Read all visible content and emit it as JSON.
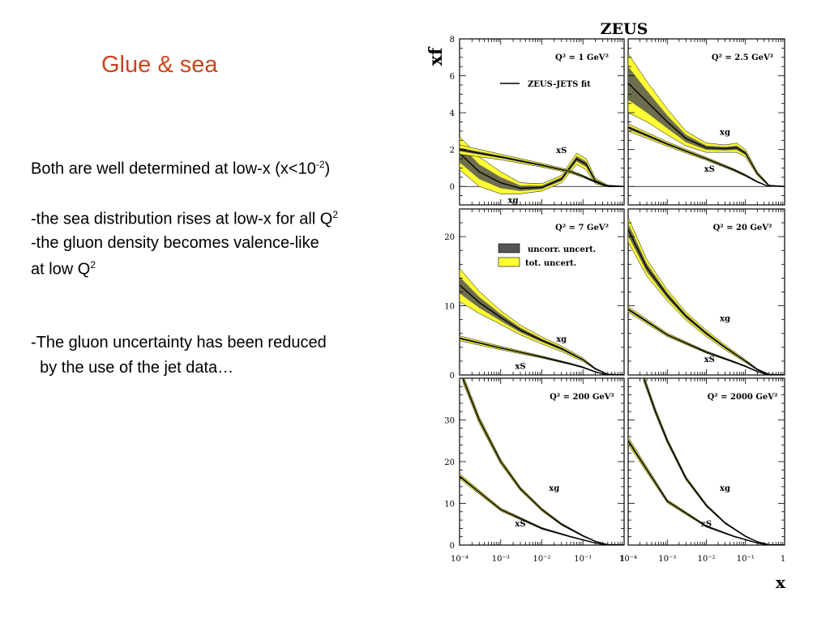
{
  "slide": {
    "title": "Glue & sea",
    "bullets": [
      {
        "text": "Both are well determined at low-x (x<10",
        "sup": "-2",
        "after": ")"
      },
      {
        "text": "-the sea distribution rises at low-x for all Q",
        "sup": "2",
        "after": ""
      },
      {
        "text": "-the gluon density becomes valence-like",
        "sup": "",
        "after": ""
      },
      {
        "text": " at low Q",
        "sup": "2",
        "after": ""
      },
      {
        "text": "-The gluon uncertainty has been reduced",
        "sup": "",
        "after": ""
      },
      {
        "text": "  by the use of the jet data…",
        "sup": "",
        "after": ""
      }
    ]
  },
  "chart_data": {
    "type": "line",
    "title": "ZEUS",
    "ylabel": "xf",
    "xlabel": "x",
    "xscale": "log",
    "xlim": [
      0.0001,
      1
    ],
    "xticks": [
      "10⁻⁴",
      "10⁻³",
      "10⁻²",
      "10⁻¹",
      "1"
    ],
    "legend_fit": "ZEUS-JETS fit",
    "legend_bands": [
      "uncorr. uncert.",
      "tot. uncert."
    ],
    "colors": {
      "tot_uncert": "#ffff33",
      "uncorr_uncert": "#555555",
      "line": "#000000"
    },
    "rows": [
      {
        "ylim": [
          -1,
          8
        ],
        "yticks": [
          0,
          2,
          4,
          6,
          8
        ]
      },
      {
        "ylim": [
          0,
          24
        ],
        "yticks": [
          0,
          10,
          20
        ]
      },
      {
        "ylim": [
          0,
          40
        ],
        "yticks": [
          0,
          10,
          20,
          30
        ]
      }
    ],
    "panels": [
      {
        "label": "Q² = 1 GeV²",
        "xg": {
          "x": [
            0.0001,
            0.0003,
            0.001,
            0.003,
            0.01,
            0.03,
            0.07,
            0.12,
            0.2,
            0.4,
            1
          ],
          "y": [
            1.8,
            0.8,
            0.2,
            -0.1,
            -0.05,
            0.4,
            1.5,
            1.2,
            0.3,
            0.02,
            0
          ],
          "tot": [
            0.9,
            0.8,
            0.6,
            0.3,
            0.2,
            0.2,
            0.3,
            0.3,
            0.15,
            0.05,
            0
          ],
          "unc": [
            0.5,
            0.4,
            0.3,
            0.15,
            0.1,
            0.1,
            0.15,
            0.15,
            0.08,
            0.03,
            0
          ]
        },
        "xS": {
          "x": [
            0.0001,
            0.001,
            0.01,
            0.05,
            0.1,
            0.2,
            0.35,
            1
          ],
          "y": [
            2.0,
            1.6,
            1.15,
            0.8,
            0.55,
            0.25,
            0.05,
            0
          ],
          "tot": [
            0.25,
            0.15,
            0.1,
            0.08,
            0.06,
            0.04,
            0.02,
            0
          ],
          "unc": [
            0.1,
            0.07,
            0.05,
            0.04,
            0.03,
            0.02,
            0.01,
            0
          ]
        }
      },
      {
        "label": "Q² = 2.5 GeV²",
        "xg": {
          "x": [
            0.0001,
            0.0003,
            0.001,
            0.003,
            0.01,
            0.03,
            0.06,
            0.1,
            0.2,
            0.4,
            1
          ],
          "y": [
            5.6,
            4.6,
            3.5,
            2.6,
            2.1,
            2.05,
            2.1,
            1.8,
            0.7,
            0.05,
            0
          ],
          "tot": [
            1.6,
            1.1,
            0.7,
            0.4,
            0.25,
            0.2,
            0.25,
            0.2,
            0.1,
            0.03,
            0
          ],
          "unc": [
            0.9,
            0.6,
            0.35,
            0.2,
            0.12,
            0.1,
            0.12,
            0.1,
            0.05,
            0.02,
            0
          ]
        },
        "xS": {
          "x": [
            0.0001,
            0.001,
            0.01,
            0.05,
            0.1,
            0.2,
            0.35,
            1
          ],
          "y": [
            3.2,
            2.3,
            1.5,
            0.9,
            0.6,
            0.25,
            0.04,
            0
          ],
          "tot": [
            0.2,
            0.12,
            0.08,
            0.06,
            0.05,
            0.03,
            0.01,
            0
          ],
          "unc": [
            0.1,
            0.06,
            0.04,
            0.03,
            0.02,
            0.01,
            0.005,
            0
          ]
        }
      },
      {
        "label": "Q² = 7 GeV²",
        "xg": {
          "x": [
            0.0001,
            0.0003,
            0.001,
            0.003,
            0.01,
            0.03,
            0.1,
            0.2,
            0.4,
            1
          ],
          "y": [
            13,
            10.5,
            8.3,
            6.5,
            5,
            3.8,
            2.2,
            0.9,
            0.1,
            0
          ],
          "tot": [
            2.4,
            1.6,
            1,
            0.7,
            0.5,
            0.4,
            0.25,
            0.1,
            0.02,
            0
          ],
          "unc": [
            1.2,
            0.8,
            0.5,
            0.35,
            0.25,
            0.2,
            0.12,
            0.05,
            0.01,
            0
          ]
        },
        "xS": {
          "x": [
            0.0001,
            0.001,
            0.01,
            0.05,
            0.1,
            0.2,
            0.35,
            1
          ],
          "y": [
            5.3,
            3.9,
            2.6,
            1.6,
            1.1,
            0.45,
            0.08,
            0
          ],
          "tot": [
            0.35,
            0.25,
            0.15,
            0.1,
            0.08,
            0.05,
            0.01,
            0
          ],
          "unc": [
            0.15,
            0.1,
            0.07,
            0.05,
            0.04,
            0.02,
            0.005,
            0
          ]
        }
      },
      {
        "label": "Q² = 20 GeV²",
        "xg": {
          "x": [
            0.0001,
            0.0003,
            0.001,
            0.003,
            0.01,
            0.03,
            0.1,
            0.2,
            0.4,
            1
          ],
          "y": [
            21,
            15.5,
            11.5,
            8.5,
            6,
            4,
            2,
            0.8,
            0.08,
            0
          ],
          "tot": [
            1.8,
            1.2,
            0.8,
            0.6,
            0.45,
            0.35,
            0.2,
            0.1,
            0.02,
            0
          ],
          "unc": [
            0.9,
            0.6,
            0.4,
            0.3,
            0.22,
            0.17,
            0.1,
            0.05,
            0.01,
            0
          ]
        },
        "xS": {
          "x": [
            0.0001,
            0.001,
            0.01,
            0.05,
            0.1,
            0.2,
            0.35,
            1
          ],
          "y": [
            9.5,
            5.8,
            3.3,
            1.9,
            1.25,
            0.5,
            0.08,
            0
          ],
          "tot": [
            0.4,
            0.25,
            0.15,
            0.1,
            0.08,
            0.05,
            0.01,
            0
          ],
          "unc": [
            0.2,
            0.12,
            0.07,
            0.05,
            0.04,
            0.02,
            0.005,
            0
          ]
        }
      },
      {
        "label": "Q² = 200 GeV²",
        "xg": {
          "x": [
            0.00012,
            0.0003,
            0.001,
            0.003,
            0.01,
            0.03,
            0.1,
            0.2,
            0.4,
            1
          ],
          "y": [
            40,
            30,
            20,
            13.5,
            8.5,
            5,
            2.2,
            0.9,
            0.1,
            0
          ],
          "tot": [
            1,
            0.8,
            0.6,
            0.45,
            0.35,
            0.25,
            0.15,
            0.08,
            0.02,
            0
          ],
          "unc": [
            0.5,
            0.4,
            0.3,
            0.22,
            0.17,
            0.12,
            0.08,
            0.04,
            0.01,
            0
          ]
        },
        "xS": {
          "x": [
            0.0001,
            0.001,
            0.01,
            0.05,
            0.1,
            0.2,
            0.35,
            1
          ],
          "y": [
            16.5,
            8.5,
            4,
            2,
            1.25,
            0.5,
            0.08,
            0
          ],
          "tot": [
            0.6,
            0.35,
            0.2,
            0.12,
            0.08,
            0.05,
            0.01,
            0
          ],
          "unc": [
            0.3,
            0.17,
            0.1,
            0.06,
            0.04,
            0.02,
            0.005,
            0
          ]
        }
      },
      {
        "label": "Q² = 2000 GeV²",
        "xg": {
          "x": [
            0.00025,
            0.0005,
            0.001,
            0.003,
            0.01,
            0.03,
            0.1,
            0.2,
            0.4,
            1
          ],
          "y": [
            40,
            32,
            25,
            16,
            9.5,
            5.3,
            2.1,
            0.8,
            0.08,
            0
          ],
          "tot": [
            0.8,
            0.7,
            0.55,
            0.4,
            0.3,
            0.2,
            0.12,
            0.06,
            0.02,
            0
          ],
          "unc": [
            0.4,
            0.35,
            0.27,
            0.2,
            0.15,
            0.1,
            0.06,
            0.03,
            0.01,
            0
          ]
        },
        "xS": {
          "x": [
            0.0001,
            0.001,
            0.01,
            0.05,
            0.1,
            0.2,
            0.35,
            1
          ],
          "y": [
            25,
            10.5,
            4.5,
            2.1,
            1.3,
            0.5,
            0.07,
            0
          ],
          "tot": [
            0.9,
            0.4,
            0.2,
            0.12,
            0.08,
            0.05,
            0.01,
            0
          ],
          "unc": [
            0.45,
            0.2,
            0.1,
            0.06,
            0.04,
            0.02,
            0.005,
            0
          ]
        }
      }
    ],
    "curve_labels": {
      "xg": "xg",
      "xS": "xS"
    }
  }
}
